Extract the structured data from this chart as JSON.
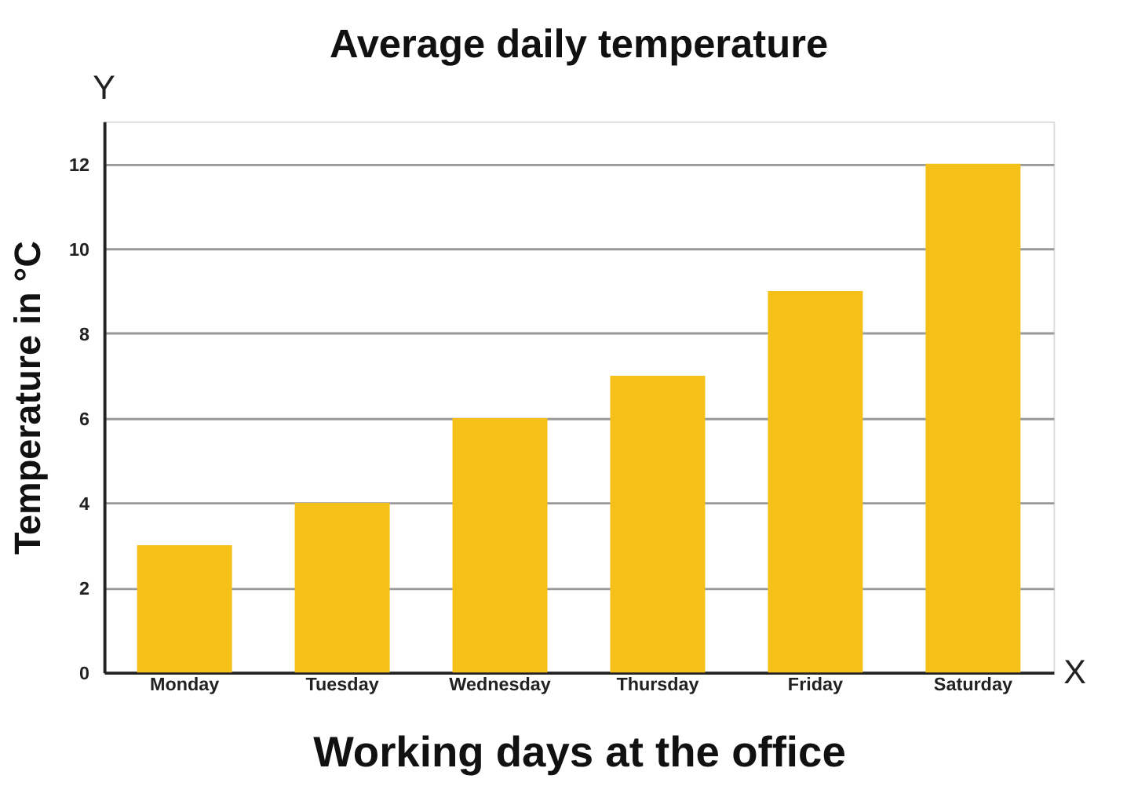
{
  "chart_data": {
    "type": "bar",
    "title": "Average daily temperature",
    "xlabel": "Working days at the office",
    "ylabel": "Temperature in °C",
    "categories": [
      "Monday",
      "Tuesday",
      "Wednesday",
      "Thursday",
      "Friday",
      "Saturday"
    ],
    "values": [
      3,
      4,
      6,
      7,
      9,
      12
    ],
    "color": "#f5c118",
    "ylim": [
      0,
      13
    ],
    "yticks": [
      0,
      2,
      4,
      6,
      8,
      10,
      12
    ],
    "grid": "y",
    "annotations": [
      "Y",
      "X"
    ]
  }
}
